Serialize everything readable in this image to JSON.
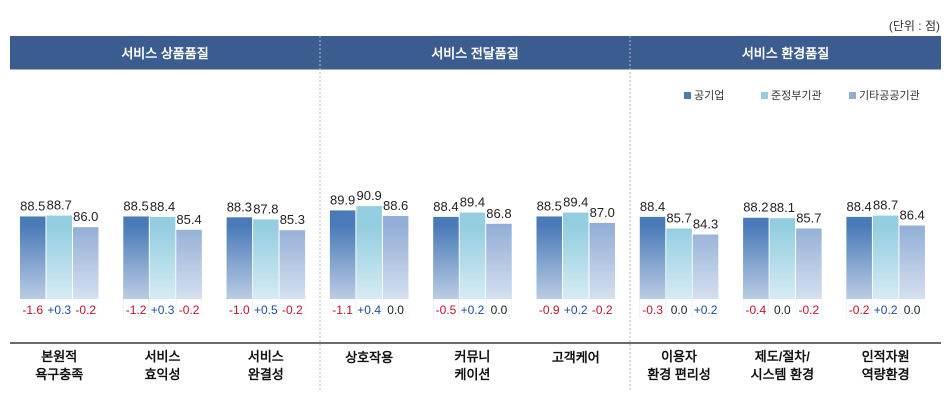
{
  "unit_note": "(단위 : 점)",
  "colors": {
    "header": "#3b5c8f",
    "public_enterprise": "#4a7ab8",
    "quasi_government": "#92cde0",
    "other_public": "#92aed6",
    "diff_negative": "#c0152a",
    "diff_positive": "#1f4e9a",
    "diff_zero": "#222222"
  },
  "chart_data": {
    "type": "bar",
    "sections": [
      {
        "title": "서비스 상품품질",
        "categories": [
          0,
          1,
          2
        ]
      },
      {
        "title": "서비스 전달품질",
        "categories": [
          3,
          4,
          5
        ]
      },
      {
        "title": "서비스 환경품질",
        "categories": [
          6,
          7,
          8
        ]
      }
    ],
    "categories": [
      [
        "본원적",
        "욕구충족"
      ],
      [
        "서비스",
        "효익성"
      ],
      [
        "서비스",
        "완결성"
      ],
      [
        "상호작용"
      ],
      [
        "커뮤니",
        "케이션"
      ],
      [
        "고객케어"
      ],
      [
        "이용자",
        "환경 편리성"
      ],
      [
        "제도/절차/",
        "시스템 환경"
      ],
      [
        "인적자원",
        "역량환경"
      ]
    ],
    "series": [
      {
        "name": "공기업",
        "values": [
          88.5,
          88.5,
          88.3,
          89.9,
          88.4,
          88.5,
          88.4,
          88.2,
          88.4
        ]
      },
      {
        "name": "준정부기관",
        "values": [
          88.7,
          88.4,
          87.8,
          90.9,
          89.4,
          89.4,
          85.7,
          88.1,
          88.7
        ]
      },
      {
        "name": "기타공공기관",
        "values": [
          86.0,
          85.4,
          85.3,
          88.6,
          86.8,
          87.0,
          84.3,
          85.7,
          86.4
        ]
      }
    ],
    "value_labels": [
      [
        "88.5",
        "88.7",
        "86.0"
      ],
      [
        "88.5",
        "88.4",
        "85.4"
      ],
      [
        "88.3",
        "87.8",
        "85.3"
      ],
      [
        "89.9",
        "90.9",
        "88.6"
      ],
      [
        "88.4",
        "89.4",
        "86.8"
      ],
      [
        "88.5",
        "89.4",
        "87.0"
      ],
      [
        "88.4",
        "85.7",
        "84.3"
      ],
      [
        "88.2",
        "88.1",
        "85.7"
      ],
      [
        "88.4",
        "88.7",
        "86.4"
      ]
    ],
    "differences": [
      [
        "-1.6",
        "+0.3",
        "-0.2"
      ],
      [
        "-1.2",
        "+0.3",
        "-0.2"
      ],
      [
        "-1.0",
        "+0.5",
        "-0.2"
      ],
      [
        "-1.1",
        "+0.4",
        "0.0"
      ],
      [
        "-0.5",
        "+0.2",
        "0.0"
      ],
      [
        "-0.9",
        "+0.2",
        "-0.2"
      ],
      [
        "-0.3",
        "0.0",
        "+0.2"
      ],
      [
        "-0.4",
        "0.0",
        "-0.2"
      ],
      [
        "-0.2",
        "+0.2",
        "0.0"
      ]
    ],
    "legend_position": "top-right",
    "grid": false
  }
}
